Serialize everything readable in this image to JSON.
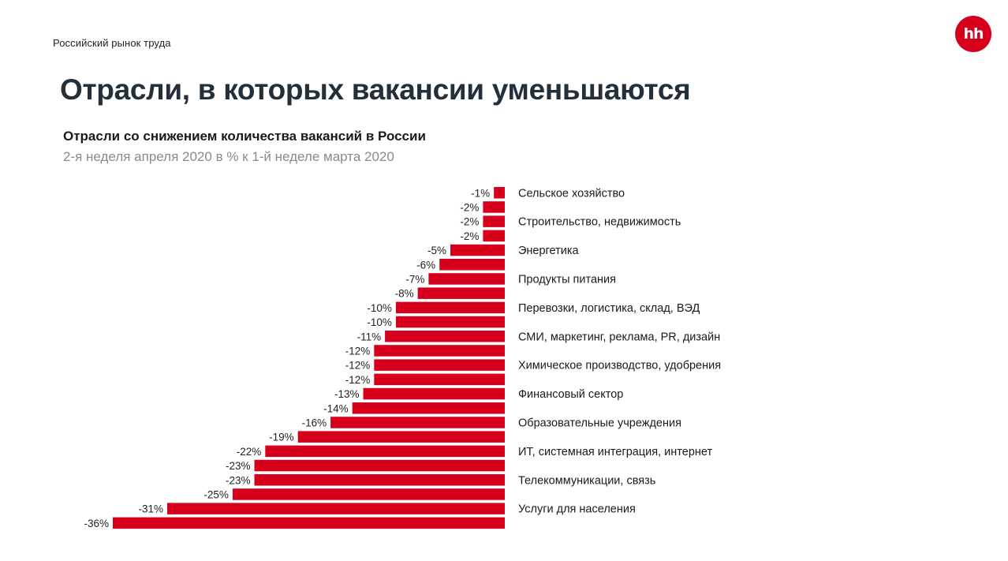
{
  "header": {
    "kicker": "Российский рынок труда",
    "logo_text": "hh",
    "page_title": "Отрасли, в которых вакансии уменьшаются"
  },
  "colors": {
    "bar": "#d6001c",
    "logo": "#d6001c"
  },
  "chart_data": {
    "type": "bar",
    "orientation": "horizontal",
    "title": "Отрасли со снижением количества вакансий в России",
    "subtitle": "2-я неделя апреля 2020 в % к 1-й неделе марта 2020",
    "value_unit": "%",
    "xlim": [
      -36,
      0
    ],
    "grid": false,
    "legend": "none",
    "categories": [
      "Сельское хозяйство",
      "",
      "Строительство, недвижимость",
      "",
      "Энергетика",
      "",
      "Продукты питания",
      "",
      "Перевозки, логистика, склад, ВЭД",
      "",
      "СМИ, маркетинг, реклама, PR, дизайн",
      "",
      "Химическое производство, удобрения",
      "",
      "Финансовый сектор",
      "",
      "Образовательные учреждения",
      "",
      "ИТ, системная интеграция, интернет",
      "",
      "Телекоммуникации, связь",
      "",
      "Услуги для населения",
      ""
    ],
    "values": [
      -1,
      -2,
      -2,
      -2,
      -5,
      -6,
      -7,
      -8,
      -10,
      -10,
      -11,
      -12,
      -12,
      -12,
      -13,
      -14,
      -16,
      -19,
      -22,
      -23,
      -23,
      -25,
      -31,
      -36
    ],
    "value_labels": [
      "-1%",
      "-2%",
      "-2%",
      "-2%",
      "-5%",
      "-6%",
      "-7%",
      "-8%",
      "-10%",
      "-10%",
      "-11%",
      "-12%",
      "-12%",
      "-12%",
      "-13%",
      "-14%",
      "-16%",
      "-19%",
      "-22%",
      "-23%",
      "-23%",
      "-25%",
      "-31%",
      "-36%"
    ]
  }
}
